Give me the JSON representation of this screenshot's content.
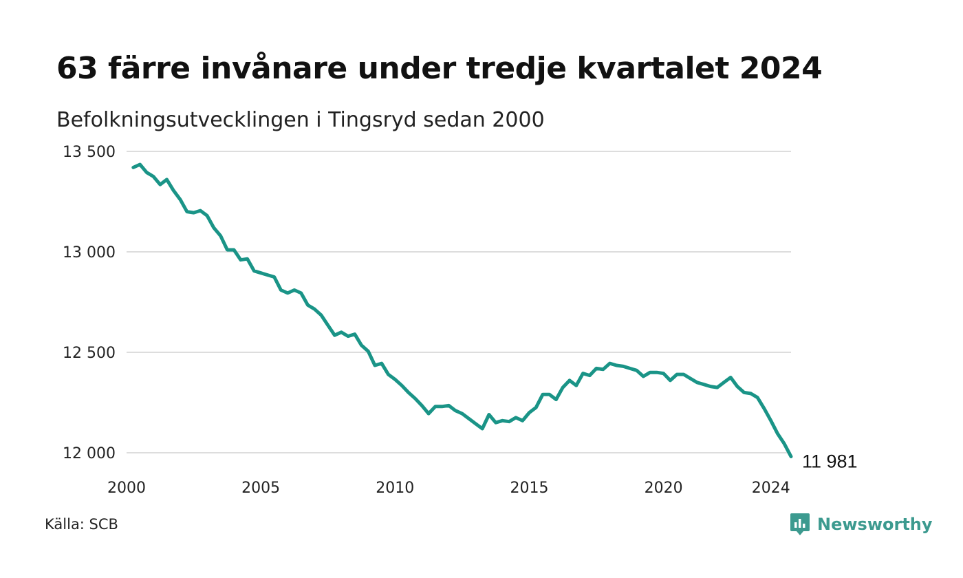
{
  "header": {
    "title": "63 färre invånare under tredje kvartalet 2024",
    "subtitle": "Befolkningsutvecklingen i Tingsryd sedan 2000"
  },
  "footer": {
    "source": "Källa: SCB",
    "brand": "Newsworthy",
    "brand_icon": "newsworthy-logo-icon"
  },
  "colors": {
    "line": "#1a9487",
    "grid": "#dddddd",
    "brand": "#3c9a8f"
  },
  "chart_data": {
    "type": "line",
    "title": "63 färre invånare under tredje kvartalet 2024",
    "subtitle": "Befolkningsutvecklingen i Tingsryd sedan 2000",
    "xlim": [
      2000,
      2024.75
    ],
    "ylim": [
      12000,
      13500
    ],
    "grid": true,
    "x_ticks": [
      2000,
      2005,
      2010,
      2015,
      2020,
      2024
    ],
    "y_ticks": [
      {
        "value": 12000,
        "label": "12 000"
      },
      {
        "value": 12500,
        "label": "12 500"
      },
      {
        "value": 13000,
        "label": "13 000"
      },
      {
        "value": 13500,
        "label": "13 500"
      }
    ],
    "end_label": "11 981",
    "series": [
      {
        "x": [
          2000.25,
          2000.5,
          2000.75,
          2001.0,
          2001.25,
          2001.5,
          2001.75,
          2002.0,
          2002.25,
          2002.5,
          2002.75,
          2003.0,
          2003.25,
          2003.5,
          2003.75,
          2004.0,
          2004.25,
          2004.5,
          2004.75,
          2005.0,
          2005.25,
          2005.5,
          2005.75,
          2006.0,
          2006.25,
          2006.5,
          2006.75,
          2007.0,
          2007.25,
          2007.5,
          2007.75,
          2008.0,
          2008.25,
          2008.5,
          2008.75,
          2009.0,
          2009.25,
          2009.5,
          2009.75,
          2010.0,
          2010.25,
          2010.5,
          2010.75,
          2011.0,
          2011.25,
          2011.5,
          2011.75,
          2012.0,
          2012.25,
          2012.5,
          2012.75,
          2013.0,
          2013.25,
          2013.5,
          2013.75,
          2014.0,
          2014.25,
          2014.5,
          2014.75,
          2015.0,
          2015.25,
          2015.5,
          2015.75,
          2016.0,
          2016.25,
          2016.5,
          2016.75,
          2017.0,
          2017.25,
          2017.5,
          2017.75,
          2018.0,
          2018.25,
          2018.5,
          2018.75,
          2019.0,
          2019.25,
          2019.5,
          2019.75,
          2020.0,
          2020.25,
          2020.5,
          2020.75,
          2021.0,
          2021.25,
          2021.5,
          2021.75,
          2022.0,
          2022.25,
          2022.5,
          2022.75,
          2023.0,
          2023.25,
          2023.5,
          2023.75,
          2024.0,
          2024.25,
          2024.5,
          2024.75
        ],
        "values": [
          13420,
          13435,
          13395,
          13375,
          13335,
          13360,
          13305,
          13260,
          13200,
          13195,
          13205,
          13180,
          13120,
          13080,
          13010,
          13010,
          12960,
          12965,
          12905,
          12895,
          12885,
          12875,
          12810,
          12795,
          12810,
          12795,
          12735,
          12715,
          12685,
          12635,
          12585,
          12600,
          12580,
          12590,
          12535,
          12505,
          12435,
          12445,
          12390,
          12365,
          12335,
          12300,
          12270,
          12235,
          12195,
          12230,
          12230,
          12235,
          12210,
          12195,
          12170,
          12145,
          12120,
          12190,
          12150,
          12160,
          12155,
          12175,
          12160,
          12200,
          12225,
          12290,
          12290,
          12265,
          12325,
          12360,
          12335,
          12395,
          12385,
          12420,
          12415,
          12445,
          12435,
          12430,
          12420,
          12410,
          12380,
          12400,
          12400,
          12395,
          12360,
          12390,
          12390,
          12370,
          12350,
          12340,
          12330,
          12325,
          12350,
          12375,
          12330,
          12300,
          12295,
          12275,
          12220,
          12160,
          12095,
          12045,
          11981
        ]
      }
    ]
  }
}
